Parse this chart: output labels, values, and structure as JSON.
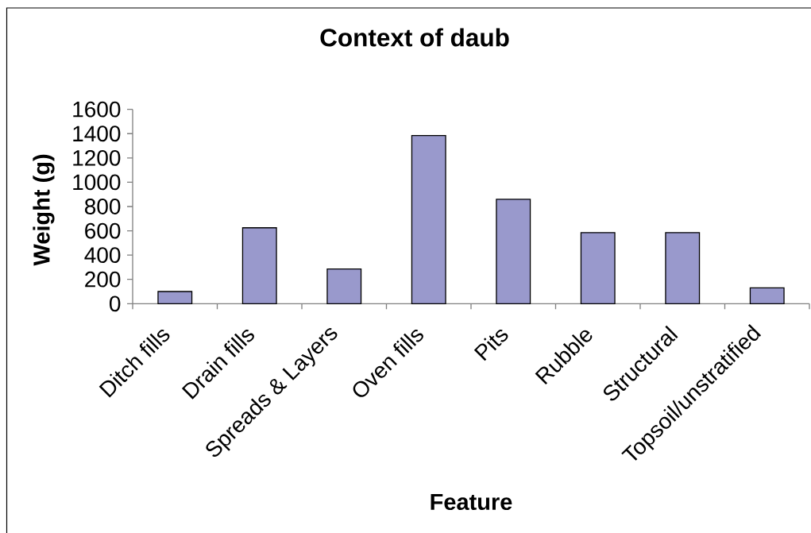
{
  "chart_data": {
    "type": "bar",
    "title": "Context of daub",
    "xlabel": "Feature",
    "ylabel": "Weight (g)",
    "categories": [
      "Ditch fills",
      "Drain fills",
      "Spreads & Layers",
      "Oven fills",
      "Pits",
      "Rubble",
      "Structural",
      "Topsoil/unstratified"
    ],
    "values": [
      100,
      625,
      285,
      1385,
      860,
      585,
      585,
      130
    ],
    "color": "#9999cc",
    "ylim": [
      0,
      1600
    ],
    "yticks": [
      0,
      200,
      400,
      600,
      800,
      1000,
      1200,
      1400,
      1600
    ]
  }
}
